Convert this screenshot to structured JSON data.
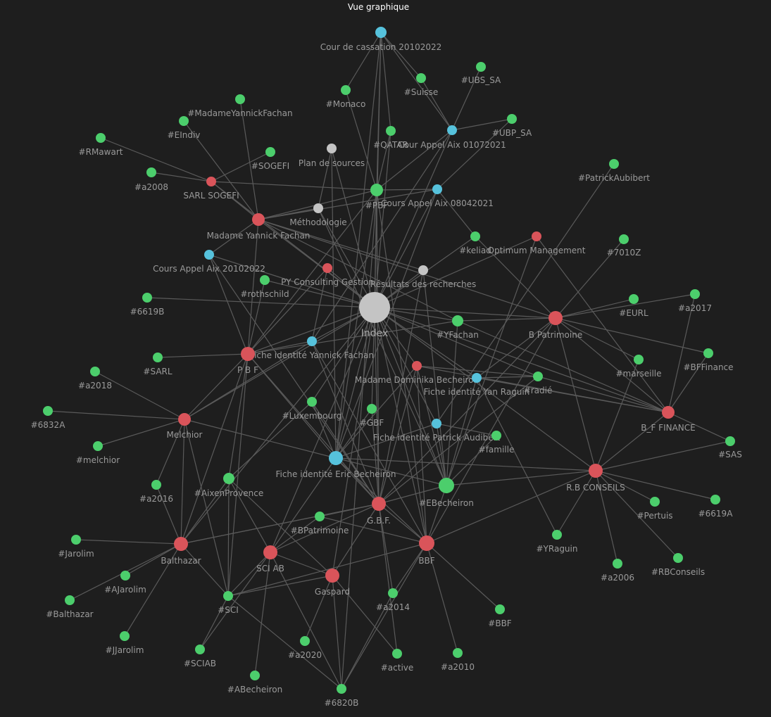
{
  "view": {
    "title": "Vue graphique"
  },
  "colors": {
    "tag": "#4cce6c",
    "red": "#d9545a",
    "blue": "#56c2dc",
    "gray": "#c4c4c4",
    "edge": "#5a5a5a",
    "background": "#1e1e1e"
  },
  "nodes": [
    {
      "id": "index",
      "label": "Index",
      "type": "gray"
    },
    {
      "id": "cass",
      "label": "Cour de cassation 20102022",
      "type": "blue"
    },
    {
      "id": "ubs",
      "label": "#UBS_SA",
      "type": "tag"
    },
    {
      "id": "suisse",
      "label": "#Suisse",
      "type": "tag"
    },
    {
      "id": "monaco",
      "label": "#Monaco",
      "type": "tag"
    },
    {
      "id": "ubp",
      "label": "#UBP_SA",
      "type": "tag"
    },
    {
      "id": "mmeyf_tag",
      "label": "#MadameYannickFachan",
      "type": "tag"
    },
    {
      "id": "eindiv",
      "label": "#EIndiv",
      "type": "tag"
    },
    {
      "id": "qatar",
      "label": "#QATAR",
      "type": "tag"
    },
    {
      "id": "caix01",
      "label": "Cour Appel Aix 01072021",
      "type": "blue"
    },
    {
      "id": "rmawart",
      "label": "#RMawart",
      "type": "tag"
    },
    {
      "id": "sogefi_tag",
      "label": "#SOGEFI",
      "type": "tag"
    },
    {
      "id": "plan",
      "label": "Plan de sources",
      "type": "gray"
    },
    {
      "id": "a2008",
      "label": "#a2008",
      "type": "tag"
    },
    {
      "id": "sarl_sogefi",
      "label": "SARL SOGEFI",
      "type": "red"
    },
    {
      "id": "pbf_tag",
      "label": "#PBF",
      "type": "tag"
    },
    {
      "id": "caix08",
      "label": "Cours Appel Aix 08042021",
      "type": "blue"
    },
    {
      "id": "patrick",
      "label": "#PatrickAubibert",
      "type": "tag"
    },
    {
      "id": "methodo",
      "label": "Méthodologie",
      "type": "gray"
    },
    {
      "id": "mmeyf",
      "label": "Madame Yannick Fachan",
      "type": "red"
    },
    {
      "id": "keliad",
      "label": "#keliad",
      "type": "tag"
    },
    {
      "id": "optimum",
      "label": "Optimum Management",
      "type": "red"
    },
    {
      "id": "n7010z",
      "label": "#7010Z",
      "type": "tag"
    },
    {
      "id": "caix20",
      "label": "Cours Appel Aix 20102022",
      "type": "blue"
    },
    {
      "id": "pyc",
      "label": "PY Consulting Gestion",
      "type": "red"
    },
    {
      "id": "resultats",
      "label": "Résultats des recherches",
      "type": "gray"
    },
    {
      "id": "rothschild",
      "label": "#rothschild",
      "type": "tag"
    },
    {
      "id": "n6619b",
      "label": "#6619B",
      "type": "tag"
    },
    {
      "id": "eurl",
      "label": "#EURL",
      "type": "tag"
    },
    {
      "id": "a2017",
      "label": "#a2017",
      "type": "tag"
    },
    {
      "id": "yfachan",
      "label": "#YFachan",
      "type": "tag"
    },
    {
      "id": "bpatrimoine",
      "label": "B Patrimoine",
      "type": "red"
    },
    {
      "id": "fiyf",
      "label": "Fiche identité Yannick Fachan",
      "type": "blue"
    },
    {
      "id": "bffinance_tag",
      "label": "#BFFinance",
      "type": "tag"
    },
    {
      "id": "sarl_tag",
      "label": "#SARL",
      "type": "tag"
    },
    {
      "id": "pbf",
      "label": "P B F",
      "type": "red"
    },
    {
      "id": "marseille",
      "label": "#marseille",
      "type": "tag"
    },
    {
      "id": "mmedb",
      "label": "Madame Dominika Becheiron",
      "type": "red"
    },
    {
      "id": "fiyr",
      "label": "Fiche identité Yan Raguin",
      "type": "blue"
    },
    {
      "id": "radie",
      "label": "#radié",
      "type": "tag"
    },
    {
      "id": "a2018",
      "label": "#a2018",
      "type": "tag"
    },
    {
      "id": "luxembourg",
      "label": "#Luxembourg",
      "type": "tag"
    },
    {
      "id": "gbf_tag",
      "label": "#GBF",
      "type": "tag"
    },
    {
      "id": "bffinance",
      "label": "B_F FINANCE",
      "type": "red"
    },
    {
      "id": "n6832a",
      "label": "#6832A",
      "type": "tag"
    },
    {
      "id": "melchior",
      "label": "Melchior",
      "type": "red"
    },
    {
      "id": "fipa",
      "label": "Fiche identité Patrick Audibert",
      "type": "blue"
    },
    {
      "id": "famille",
      "label": "#famille",
      "type": "tag"
    },
    {
      "id": "sas",
      "label": "#SAS",
      "type": "tag"
    },
    {
      "id": "melchior_tag",
      "label": "#melchior",
      "type": "tag"
    },
    {
      "id": "fieb",
      "label": "Fiche identité Eric Becheiron",
      "type": "blue"
    },
    {
      "id": "rbconseils",
      "label": "R.B CONSEILS",
      "type": "red"
    },
    {
      "id": "aixenprov",
      "label": "#AixenProvence",
      "type": "tag"
    },
    {
      "id": "ebecheiron",
      "label": "#EBecheiron",
      "type": "tag"
    },
    {
      "id": "a2016",
      "label": "#a2016",
      "type": "tag"
    },
    {
      "id": "gbf",
      "label": "G.B.F.",
      "type": "red"
    },
    {
      "id": "pertuis",
      "label": "#Pertuis",
      "type": "tag"
    },
    {
      "id": "n6619a",
      "label": "#6619A",
      "type": "tag"
    },
    {
      "id": "bpatrimoine_tag",
      "label": "#BPatrimoine",
      "type": "tag"
    },
    {
      "id": "jarolim",
      "label": "#Jarolim",
      "type": "tag"
    },
    {
      "id": "balthazar",
      "label": "Balthazar",
      "type": "red"
    },
    {
      "id": "sciab",
      "label": "SCI AB",
      "type": "red"
    },
    {
      "id": "bbf",
      "label": "BBF",
      "type": "red"
    },
    {
      "id": "yraguin",
      "label": "#YRaguin",
      "type": "tag"
    },
    {
      "id": "ajarolim",
      "label": "#AJarolim",
      "type": "tag"
    },
    {
      "id": "gaspard",
      "label": "Gaspard",
      "type": "red"
    },
    {
      "id": "a2006",
      "label": "#a2006",
      "type": "tag"
    },
    {
      "id": "rbconseils_tag",
      "label": "#RBConseils",
      "type": "tag"
    },
    {
      "id": "balthazar_tag",
      "label": "#Balthazar",
      "type": "tag"
    },
    {
      "id": "sci_tag",
      "label": "#SCI",
      "type": "tag"
    },
    {
      "id": "a2014",
      "label": "#a2014",
      "type": "tag"
    },
    {
      "id": "bbf_tag",
      "label": "#BBF",
      "type": "tag"
    },
    {
      "id": "jjarolim",
      "label": "#JJarolim",
      "type": "tag"
    },
    {
      "id": "sciab_tag",
      "label": "#SCIAB",
      "type": "tag"
    },
    {
      "id": "a2020",
      "label": "#a2020",
      "type": "tag"
    },
    {
      "id": "active",
      "label": "#active",
      "type": "tag"
    },
    {
      "id": "a2010",
      "label": "#a2010",
      "type": "tag"
    },
    {
      "id": "abecheiron",
      "label": "#ABecheiron",
      "type": "tag"
    },
    {
      "id": "n6820b",
      "label": "#6820B",
      "type": "tag"
    }
  ]
}
